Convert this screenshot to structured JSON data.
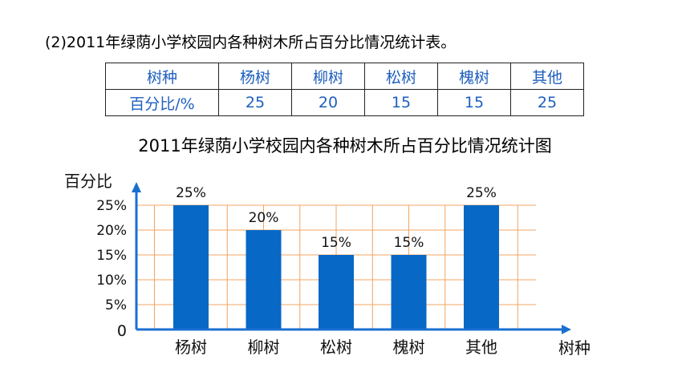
{
  "heading": "(2)2011年绿荫小学校园内各种树木所占百分比情况统计表。",
  "table": {
    "rows": [
      [
        "树种",
        "杨树",
        "柳树",
        "松树",
        "槐树",
        "其他"
      ],
      [
        "百分比/%",
        "25",
        "20",
        "15",
        "15",
        "25"
      ]
    ]
  },
  "colors": {
    "bar": "#0868c6",
    "grid": "#f4a460",
    "axis": "#1a6fd1",
    "table_text": "#1f5fbf"
  },
  "chart_data": {
    "type": "bar",
    "title": "2011年绿荫小学校园内各种树木所占百分比情况统计图",
    "xlabel": "树种",
    "ylabel": "百分比",
    "categories": [
      "杨树",
      "柳树",
      "松树",
      "槐树",
      "其他"
    ],
    "values": [
      25,
      20,
      15,
      15,
      25
    ],
    "data_labels": [
      "25%",
      "20%",
      "15%",
      "15%",
      "25%"
    ],
    "y_ticks": [
      {
        "value": 0,
        "label": "0"
      },
      {
        "value": 5,
        "label": "5%"
      },
      {
        "value": 10,
        "label": "10%"
      },
      {
        "value": 15,
        "label": "15%"
      },
      {
        "value": 20,
        "label": "20%"
      },
      {
        "value": 25,
        "label": "25%"
      }
    ],
    "ylim": [
      0,
      25
    ],
    "grid": true
  }
}
